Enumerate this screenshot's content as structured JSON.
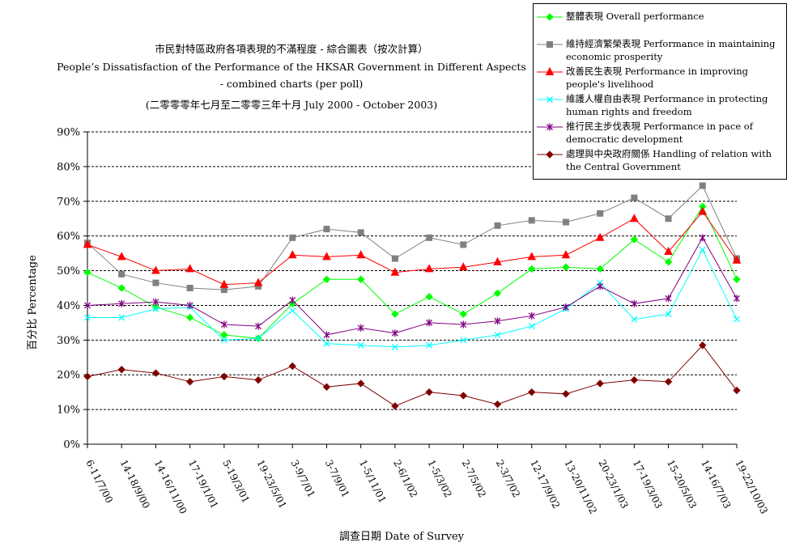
{
  "chart_data": {
    "type": "line",
    "title_lines": [
      "市民對特區政府各項表現的不滿程度  -  綜合圖表（按次計算）",
      "People’s Dissatisfaction of the Performance of the HKSAR Government in Different Aspects",
      "- combined charts  (per poll)",
      "(二零零零年七月至二零零三年十月 July 2000 - October 2003)"
    ],
    "xlabel": "調查日期 Date of Survey",
    "ylabel": "百分比 Percentage",
    "ylim": [
      0,
      90
    ],
    "yticks": [
      "0%",
      "10%",
      "20%",
      "30%",
      "40%",
      "50%",
      "60%",
      "70%",
      "80%",
      "90%"
    ],
    "grid": "horizontal dashed",
    "legend_position": "top-right",
    "categories": [
      "6-11/7/00",
      "14-18/9/00",
      "14-16/11/00",
      "17-19/1/01",
      "5-19/3/01",
      "19-23/5/01",
      "3-9/7/01",
      "3-7/9/01",
      "1-5/11/01",
      "2-6/1/02",
      "1-5/3/02",
      "2-7/5/02",
      "2-3/7/02",
      "12-17/9/02",
      "13-20/11/02",
      "20-23/1/03",
      "17-19/3/03",
      "15-20/5/03",
      "14-16/7/03",
      "19-22/10/03"
    ],
    "series": [
      {
        "name": "整體表現 Overall performance",
        "color": "#00ff00",
        "marker": "diamond",
        "values": [
          49.5,
          45,
          39.5,
          36.5,
          31.5,
          30.5,
          40.5,
          47.5,
          47.5,
          37.5,
          42.5,
          37.5,
          43.5,
          50.5,
          51,
          50.5,
          59,
          52.5,
          68.5,
          47.5
        ]
      },
      {
        "name": "維持經濟繁榮表現 Performance in maintaining economic prosperity",
        "color": "#808080",
        "marker": "square",
        "values": [
          58,
          49,
          46.5,
          45,
          44.5,
          45.5,
          59.5,
          62,
          61,
          53.5,
          59.5,
          57.5,
          63,
          64.5,
          64,
          66.5,
          71,
          65,
          74.5,
          53.5
        ]
      },
      {
        "name": "改善民生表現 Performance in improving people's livelihood",
        "color": "#ff0000",
        "marker": "triangle",
        "values": [
          57.5,
          54,
          50,
          50.5,
          46,
          46.5,
          54.5,
          54,
          54.5,
          49.5,
          50.5,
          51,
          52.5,
          54,
          54.5,
          59.5,
          65,
          55.5,
          67,
          53
        ]
      },
      {
        "name": "維護人權自由表現 Performance in protecting human rights and freedom",
        "color": "#00ffff",
        "marker": "x",
        "values": [
          36.5,
          36.5,
          39,
          39.5,
          30,
          30.5,
          38.5,
          29,
          28.5,
          28,
          28.5,
          30,
          31.5,
          34,
          39,
          46.5,
          36,
          37.5,
          56,
          36
        ]
      },
      {
        "name": "推行民主步伐表現 Performance in pace of democratic development",
        "color": "#800080",
        "marker": "asterisk",
        "values": [
          40,
          40.5,
          41,
          40,
          34.5,
          34,
          41.5,
          31.5,
          33.5,
          32,
          35,
          34.5,
          35.5,
          37,
          39.5,
          45.5,
          40.5,
          42,
          59.5,
          42
        ]
      },
      {
        "name": "處理與中央政府關係 Handling of relation with the Central Government",
        "color": "#800000",
        "marker": "diamond",
        "values": [
          19.5,
          21.5,
          20.5,
          18,
          19.5,
          18.5,
          22.5,
          16.5,
          17.5,
          11,
          15,
          14,
          11.5,
          15,
          14.5,
          17.5,
          18.5,
          18,
          28.5,
          15.5
        ]
      }
    ]
  }
}
